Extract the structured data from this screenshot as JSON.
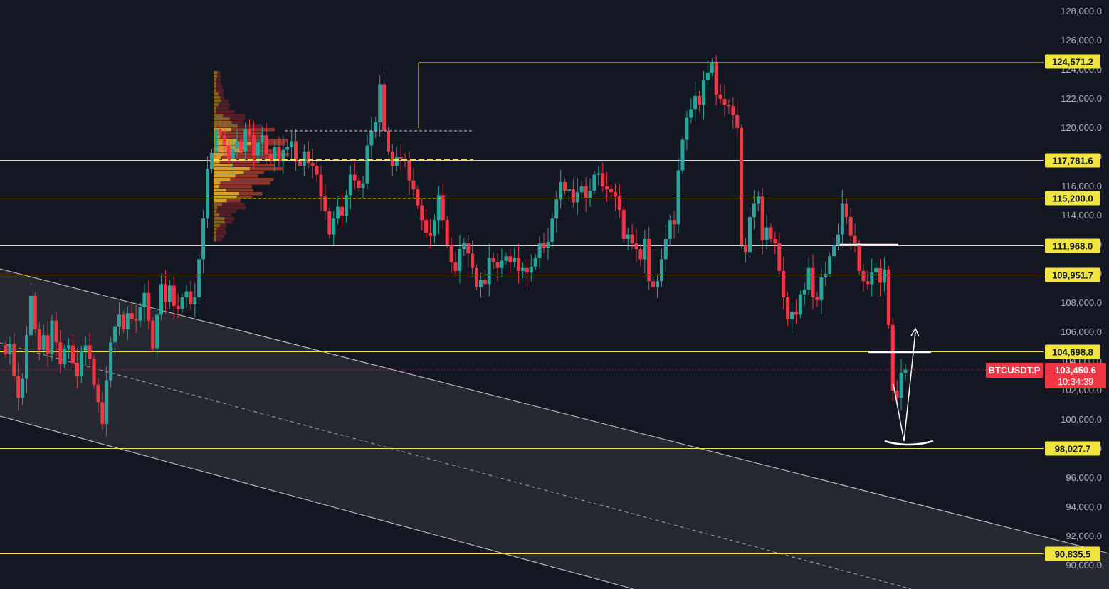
{
  "chart_data": {
    "type": "candlestick",
    "symbol": "BTCUSDT.P",
    "last_price": "103,450.6",
    "countdown": "10:34:39",
    "y_axis": {
      "min": 89500,
      "max": 128600,
      "ticks": [
        90000,
        92000,
        94000,
        96000,
        98000,
        100000,
        102000,
        104000,
        106000,
        108000,
        110000,
        112000,
        114000,
        116000,
        118000,
        120000,
        122000,
        124000,
        126000,
        128000
      ],
      "tick_labels": [
        "90,000.0",
        "92,000.0",
        "94,000.0",
        "96,000.0",
        "98,000.0",
        "100,000.0",
        "102,000.0",
        "104,000.0",
        "106,000.0",
        "108,000.0",
        "110,000.0",
        "112,000.0",
        "114,000.0",
        "116,000.0",
        "118,000.0",
        "120,000.0",
        "122,000.0",
        "124,000.0",
        "126,000.0",
        "128,000.0"
      ]
    },
    "levels": [
      {
        "value": 124571.2,
        "label": "124,571.2"
      },
      {
        "value": 117781.6,
        "label": "117,781.6"
      },
      {
        "value": 115200.0,
        "label": "115,200.0"
      },
      {
        "value": 111968.0,
        "label": "111,968.0"
      },
      {
        "value": 109951.7,
        "label": "109,951.7"
      },
      {
        "value": 104698.8,
        "label": "104,698.8"
      },
      {
        "value": 98027.7,
        "label": "98,027.7"
      },
      {
        "value": 90835.5,
        "label": "90,835.5"
      }
    ],
    "closes": [
      104500,
      105200,
      103000,
      101500,
      102800,
      105800,
      108500,
      106200,
      104800,
      105800,
      104500,
      106800,
      105300,
      103800,
      104900,
      105100,
      103900,
      103000,
      104700,
      105100,
      104200,
      102400,
      101200,
      99700,
      102700,
      105300,
      106400,
      107200,
      106200,
      107300,
      106900,
      106800,
      107700,
      108700,
      106800,
      104900,
      107200,
      109300,
      108100,
      109200,
      107800,
      107600,
      108400,
      108800,
      107900,
      108400,
      111000,
      113800,
      117200,
      118300,
      119900,
      119500,
      118800,
      117800,
      118600,
      119100,
      118400,
      119900,
      119500,
      118100,
      119000,
      119500,
      118200,
      117700,
      118700,
      117700,
      118500,
      118700,
      119100,
      117700,
      117400,
      118400,
      117600,
      117400,
      116800,
      115300,
      114300,
      112700,
      113800,
      114600,
      114000,
      115400,
      116800,
      116400,
      115900,
      116200,
      118800,
      119800,
      120400,
      123000,
      119800,
      118400,
      117400,
      118000,
      117900,
      117800,
      116400,
      115800,
      114700,
      113700,
      112800,
      112600,
      113700,
      115400,
      113700,
      112000,
      110800,
      110200,
      111700,
      112100,
      111400,
      110400,
      109100,
      109600,
      109300,
      111100,
      110800,
      110400,
      110900,
      111200,
      110800,
      111100,
      110200,
      110400,
      110100,
      110500,
      111100,
      112100,
      111800,
      112200,
      113800,
      115100,
      116300,
      115700,
      115800,
      114900,
      115600,
      116000,
      115200,
      115700,
      116800,
      116900,
      116000,
      115800,
      115600,
      115300,
      114400,
      112400,
      112700,
      112100,
      111700,
      111000,
      112400,
      109500,
      109100,
      109500,
      111000,
      112400,
      113700,
      113400,
      117100,
      119200,
      120700,
      121300,
      122200,
      121600,
      123300,
      123800,
      124500,
      122300,
      122000,
      121600,
      121500,
      120900,
      120000,
      112000,
      111500,
      113900,
      114800,
      115300,
      112300,
      113200,
      112400,
      112100,
      110200,
      108400,
      106900,
      107400,
      107200,
      108600,
      108900,
      110400,
      108400,
      108200,
      109800,
      110000,
      111200,
      112000,
      112700,
      114800,
      113900,
      112600,
      112100,
      110200,
      109500,
      109300,
      110100,
      110400,
      109400,
      110300,
      106500,
      102000,
      101500,
      103200,
      103450
    ]
  },
  "annotation": {
    "line_color": "#ffffff",
    "level_color": "#f0e442",
    "up_color": "#26a69a",
    "down_color": "#f23645",
    "channel_fill": "#252830"
  }
}
